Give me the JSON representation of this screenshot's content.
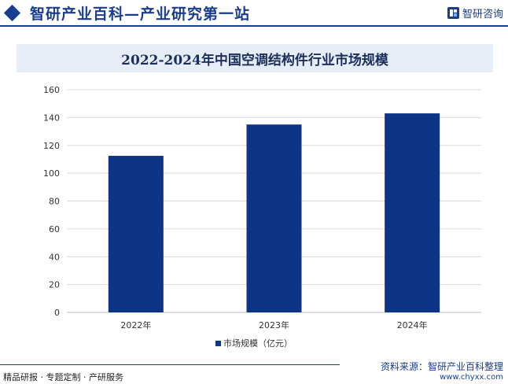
{
  "header": {
    "title": "智研产业百科—产业研究第一站",
    "brand_name": "智研咨询"
  },
  "chart_data": {
    "type": "bar",
    "title": "2022-2024年中国空调结构件行业市场规模",
    "categories": [
      "2022年",
      "2023年",
      "2024年"
    ],
    "series": [
      {
        "name": "市场规模（亿元）",
        "values": [
          112.5,
          135,
          143
        ]
      }
    ],
    "ylim": [
      0,
      160
    ],
    "yticks": [
      0,
      20,
      40,
      60,
      80,
      100,
      120,
      140,
      160
    ],
    "xlabel": "",
    "ylabel": "",
    "grid": true,
    "legend": "bottom-center",
    "colors": {
      "bar": "#0d3585",
      "grid": "#d9d9d9"
    }
  },
  "footer": {
    "left_text": "精品研报 · 专题定制 · 产研服务",
    "source": "资料来源：智研产业百科整理",
    "url": "www.chyxx.com"
  },
  "colors": {
    "accent": "#1a3d8f",
    "title_bg": "#e7edf7"
  }
}
